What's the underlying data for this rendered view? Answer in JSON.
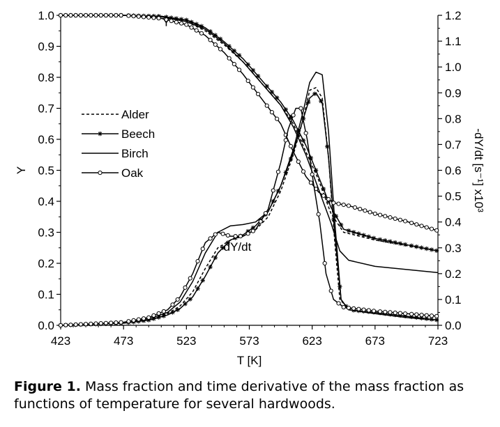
{
  "chart_data": {
    "type": "line",
    "xlabel": "T [K]",
    "ylabel_left": "Y",
    "ylabel_right": "-dY/dt [s⁻¹] x10³",
    "xlim": [
      423,
      723
    ],
    "ylim_left": [
      0,
      1.0
    ],
    "ylim_right": [
      0,
      1.2
    ],
    "x_ticks": [
      "423",
      "473",
      "523",
      "573",
      "623",
      "673",
      "723"
    ],
    "y_ticks_left": [
      "0.0",
      "0.1",
      "0.2",
      "0.3",
      "0.4",
      "0.5",
      "0.6",
      "0.7",
      "0.8",
      "0.9",
      "1.0"
    ],
    "y_ticks_right": [
      "0.0",
      "0.1",
      "0.2",
      "0.3",
      "0.4",
      "0.5",
      "0.6",
      "0.7",
      "0.8",
      "0.9",
      "1.0",
      "1.1",
      "1.2"
    ],
    "grid": false,
    "legend_position": "left-middle",
    "annotations": [
      {
        "text": "Y",
        "x": 507,
        "y": 0.965,
        "axis": "left"
      },
      {
        "text": "-dY/dt",
        "x": 562,
        "y": 0.24,
        "axis": "left"
      }
    ],
    "series": [
      {
        "name": "Alder",
        "style": "dashed",
        "marker": "none",
        "mass_fraction": [
          [
            423,
            1.0
          ],
          [
            473,
            1.0
          ],
          [
            503,
            0.995
          ],
          [
            523,
            0.98
          ],
          [
            538,
            0.95
          ],
          [
            553,
            0.905
          ],
          [
            568,
            0.85
          ],
          [
            583,
            0.78
          ],
          [
            598,
            0.71
          ],
          [
            608,
            0.65
          ],
          [
            618,
            0.56
          ],
          [
            628,
            0.47
          ],
          [
            638,
            0.36
          ],
          [
            648,
            0.3
          ],
          [
            673,
            0.275
          ],
          [
            698,
            0.257
          ],
          [
            723,
            0.24
          ]
        ],
        "derivative": [
          [
            423,
            0.0
          ],
          [
            473,
            0.01
          ],
          [
            493,
            0.025
          ],
          [
            508,
            0.045
          ],
          [
            518,
            0.075
          ],
          [
            528,
            0.13
          ],
          [
            538,
            0.22
          ],
          [
            548,
            0.3
          ],
          [
            558,
            0.33
          ],
          [
            568,
            0.345
          ],
          [
            578,
            0.37
          ],
          [
            588,
            0.42
          ],
          [
            598,
            0.52
          ],
          [
            608,
            0.66
          ],
          [
            616,
            0.8
          ],
          [
            621,
            0.91
          ],
          [
            626,
            0.92
          ],
          [
            631,
            0.88
          ],
          [
            636,
            0.65
          ],
          [
            641,
            0.32
          ],
          [
            645,
            0.1
          ],
          [
            652,
            0.065
          ],
          [
            673,
            0.05
          ],
          [
            698,
            0.035
          ],
          [
            723,
            0.02
          ]
        ]
      },
      {
        "name": "Beech",
        "style": "solid",
        "marker": "star",
        "mass_fraction": [
          [
            423,
            1.0
          ],
          [
            473,
            1.0
          ],
          [
            503,
            0.997
          ],
          [
            523,
            0.985
          ],
          [
            538,
            0.96
          ],
          [
            553,
            0.915
          ],
          [
            568,
            0.86
          ],
          [
            583,
            0.79
          ],
          [
            598,
            0.72
          ],
          [
            608,
            0.66
          ],
          [
            618,
            0.58
          ],
          [
            628,
            0.48
          ],
          [
            638,
            0.38
          ],
          [
            648,
            0.31
          ],
          [
            673,
            0.28
          ],
          [
            698,
            0.26
          ],
          [
            723,
            0.24
          ]
        ],
        "derivative": [
          [
            423,
            0.0
          ],
          [
            473,
            0.008
          ],
          [
            493,
            0.02
          ],
          [
            508,
            0.04
          ],
          [
            518,
            0.065
          ],
          [
            528,
            0.11
          ],
          [
            538,
            0.19
          ],
          [
            548,
            0.28
          ],
          [
            558,
            0.33
          ],
          [
            568,
            0.35
          ],
          [
            578,
            0.385
          ],
          [
            588,
            0.44
          ],
          [
            598,
            0.54
          ],
          [
            608,
            0.67
          ],
          [
            616,
            0.8
          ],
          [
            621,
            0.88
          ],
          [
            626,
            0.9
          ],
          [
            631,
            0.86
          ],
          [
            636,
            0.65
          ],
          [
            641,
            0.35
          ],
          [
            646,
            0.1
          ],
          [
            652,
            0.06
          ],
          [
            673,
            0.05
          ],
          [
            698,
            0.035
          ],
          [
            723,
            0.02
          ]
        ]
      },
      {
        "name": "Birch",
        "style": "solid",
        "marker": "none",
        "mass_fraction": [
          [
            423,
            1.0
          ],
          [
            473,
            1.0
          ],
          [
            503,
            0.995
          ],
          [
            523,
            0.98
          ],
          [
            538,
            0.955
          ],
          [
            553,
            0.91
          ],
          [
            568,
            0.85
          ],
          [
            583,
            0.78
          ],
          [
            598,
            0.71
          ],
          [
            608,
            0.64
          ],
          [
            618,
            0.55
          ],
          [
            628,
            0.44
          ],
          [
            638,
            0.33
          ],
          [
            645,
            0.24
          ],
          [
            652,
            0.21
          ],
          [
            673,
            0.19
          ],
          [
            698,
            0.18
          ],
          [
            723,
            0.17
          ]
        ],
        "derivative": [
          [
            423,
            0.0
          ],
          [
            473,
            0.01
          ],
          [
            493,
            0.025
          ],
          [
            508,
            0.05
          ],
          [
            518,
            0.09
          ],
          [
            528,
            0.17
          ],
          [
            538,
            0.28
          ],
          [
            548,
            0.36
          ],
          [
            558,
            0.385
          ],
          [
            568,
            0.39
          ],
          [
            578,
            0.4
          ],
          [
            588,
            0.44
          ],
          [
            598,
            0.54
          ],
          [
            608,
            0.68
          ],
          [
            616,
            0.83
          ],
          [
            621,
            0.94
          ],
          [
            626,
            0.98
          ],
          [
            631,
            0.97
          ],
          [
            636,
            0.75
          ],
          [
            641,
            0.4
          ],
          [
            646,
            0.1
          ],
          [
            652,
            0.06
          ],
          [
            673,
            0.045
          ],
          [
            698,
            0.03
          ],
          [
            723,
            0.02
          ]
        ]
      },
      {
        "name": "Oak",
        "style": "solid",
        "marker": "circle",
        "mass_fraction": [
          [
            423,
            1.0
          ],
          [
            473,
            1.0
          ],
          [
            503,
            0.99
          ],
          [
            523,
            0.97
          ],
          [
            538,
            0.935
          ],
          [
            553,
            0.88
          ],
          [
            568,
            0.81
          ],
          [
            583,
            0.73
          ],
          [
            598,
            0.65
          ],
          [
            608,
            0.56
          ],
          [
            618,
            0.48
          ],
          [
            628,
            0.43
          ],
          [
            640,
            0.395
          ],
          [
            653,
            0.385
          ],
          [
            673,
            0.36
          ],
          [
            698,
            0.335
          ],
          [
            723,
            0.305
          ]
        ],
        "derivative": [
          [
            423,
            0.0
          ],
          [
            473,
            0.012
          ],
          [
            493,
            0.03
          ],
          [
            508,
            0.06
          ],
          [
            518,
            0.11
          ],
          [
            528,
            0.2
          ],
          [
            538,
            0.32
          ],
          [
            548,
            0.36
          ],
          [
            558,
            0.345
          ],
          [
            568,
            0.345
          ],
          [
            578,
            0.37
          ],
          [
            588,
            0.45
          ],
          [
            598,
            0.63
          ],
          [
            604,
            0.76
          ],
          [
            610,
            0.84
          ],
          [
            614,
            0.84
          ],
          [
            619,
            0.72
          ],
          [
            624,
            0.55
          ],
          [
            629,
            0.4
          ],
          [
            634,
            0.2
          ],
          [
            640,
            0.1
          ],
          [
            648,
            0.07
          ],
          [
            673,
            0.055
          ],
          [
            698,
            0.045
          ],
          [
            723,
            0.035
          ]
        ]
      }
    ]
  },
  "caption": {
    "label": "Figure 1.",
    "text": "Mass fraction and time derivative of the mass fraction as functions of temperature for several hardwoods."
  }
}
